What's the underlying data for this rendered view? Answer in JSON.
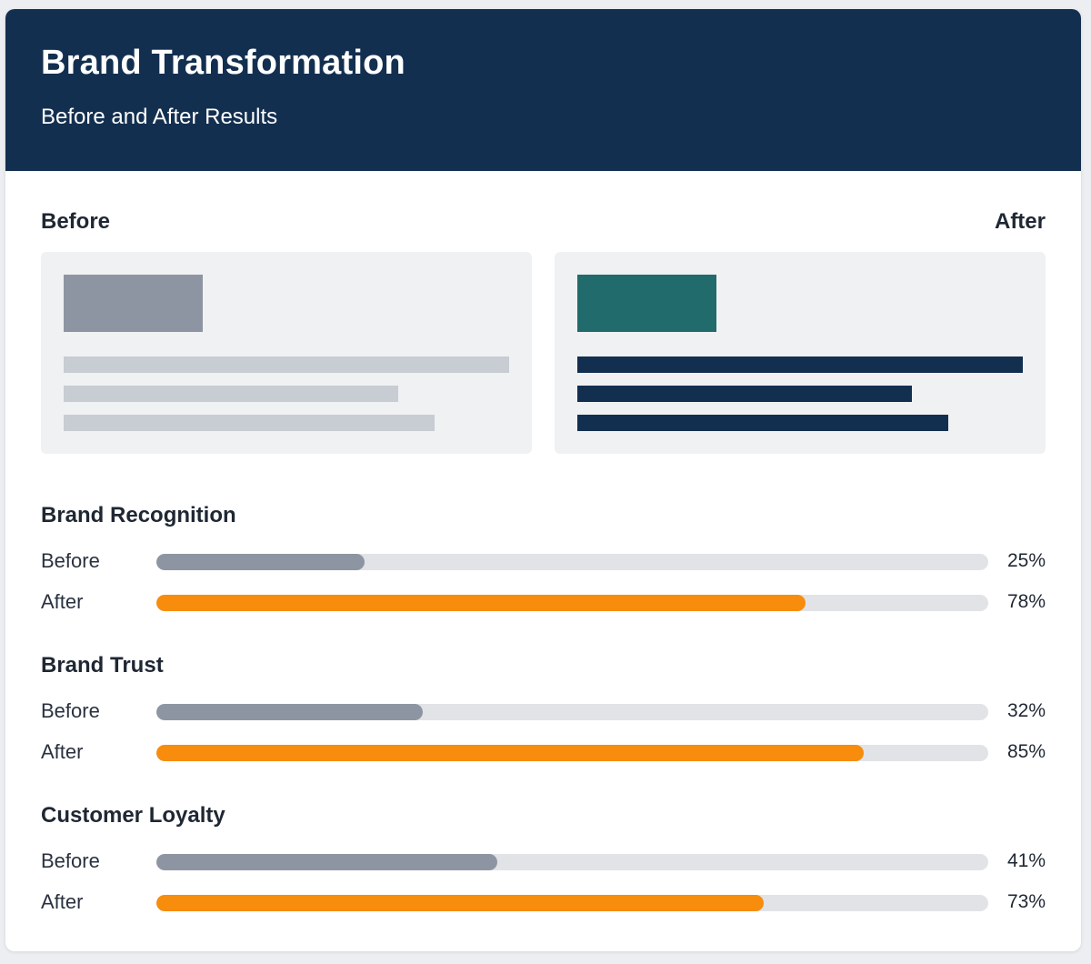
{
  "header": {
    "title": "Brand Transformation",
    "subtitle": "Before and After Results"
  },
  "comparison": {
    "before_label": "Before",
    "after_label": "After",
    "colors": {
      "before_block": "#8e95a2",
      "before_lines": "#c8ccd3",
      "after_block": "#216b6c",
      "after_lines": "#132f50"
    }
  },
  "chart_data": {
    "type": "bar",
    "orientation": "horizontal",
    "xlim": [
      0,
      100
    ],
    "unit": "%",
    "colors": {
      "before": "#8e95a2",
      "after": "#f78c0d",
      "track": "#e1e3e7"
    },
    "groups": [
      {
        "title": "Brand Recognition",
        "rows": [
          {
            "label": "Before",
            "value": 25,
            "display": "25%"
          },
          {
            "label": "After",
            "value": 78,
            "display": "78%"
          }
        ]
      },
      {
        "title": "Brand Trust",
        "rows": [
          {
            "label": "Before",
            "value": 32,
            "display": "32%"
          },
          {
            "label": "After",
            "value": 85,
            "display": "85%"
          }
        ]
      },
      {
        "title": "Customer Loyalty",
        "rows": [
          {
            "label": "Before",
            "value": 41,
            "display": "41%"
          },
          {
            "label": "After",
            "value": 73,
            "display": "73%"
          }
        ]
      }
    ]
  }
}
